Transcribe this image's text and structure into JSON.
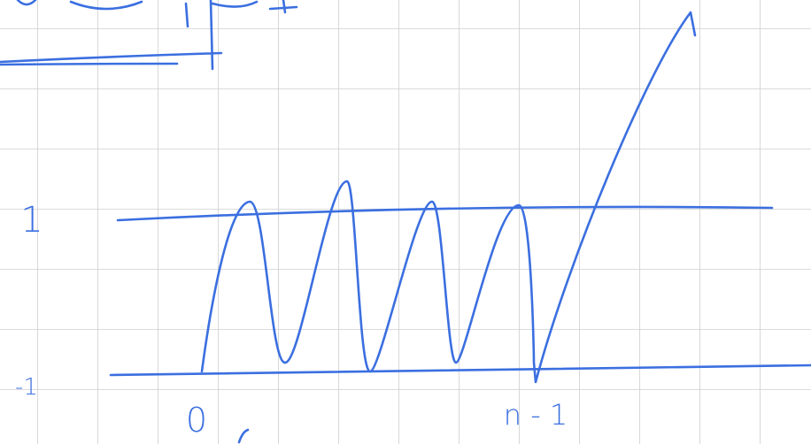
{
  "labels": {
    "upper": "1",
    "lower": "-1",
    "start": "0",
    "end": "n - 1"
  }
}
